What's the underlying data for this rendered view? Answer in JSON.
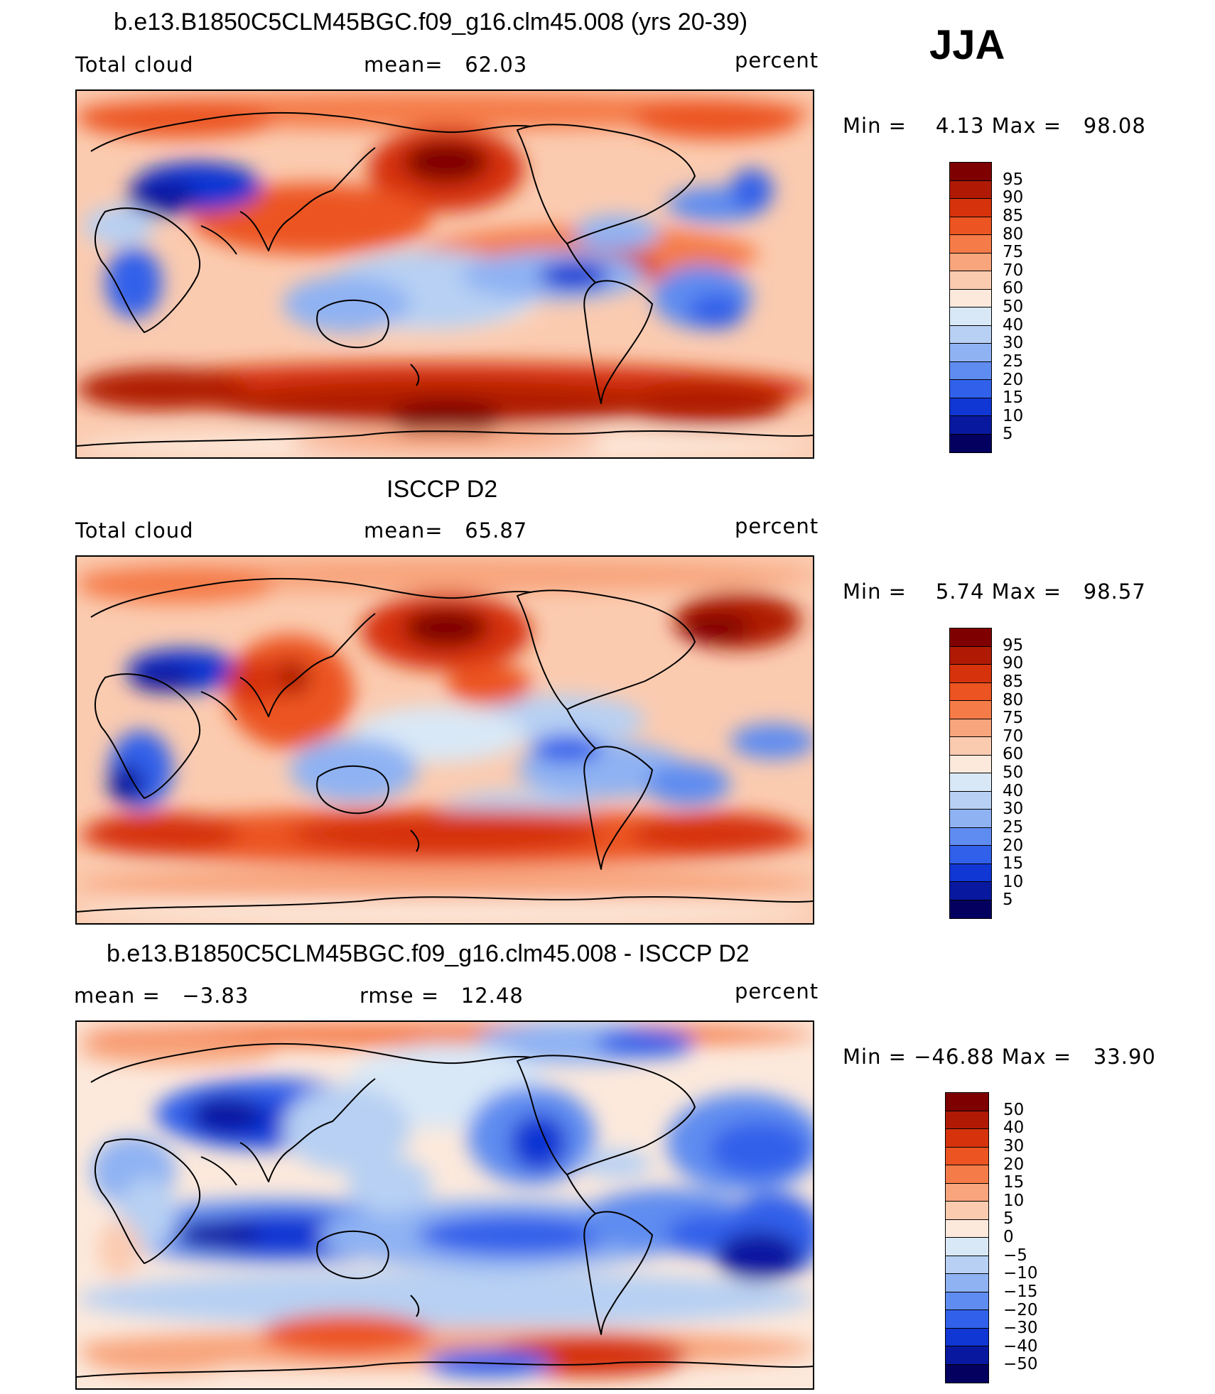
{
  "season": "JJA",
  "panels": [
    {
      "title": "b.e13.B1850C5CLM45BGC.f09_g16.clm45.008 (yrs 20-39)",
      "left_label": "Total cloud",
      "center_label": "mean=   62.03",
      "units": "percent",
      "minmax": "Min =    4.13 Max =   98.08",
      "colorbar_ticks": [
        "95",
        "90",
        "85",
        "80",
        "75",
        "70",
        "60",
        "50",
        "40",
        "30",
        "25",
        "20",
        "15",
        "10",
        "5"
      ]
    },
    {
      "title": "ISCCP D2",
      "left_label": "Total cloud",
      "center_label": "mean=   65.87",
      "units": "percent",
      "minmax": "Min =    5.74 Max =   98.57",
      "colorbar_ticks": [
        "95",
        "90",
        "85",
        "80",
        "75",
        "70",
        "60",
        "50",
        "40",
        "30",
        "25",
        "20",
        "15",
        "10",
        "5"
      ]
    },
    {
      "title": "b.e13.B1850C5CLM45BGC.f09_g16.clm45.008 - ISCCP D2",
      "left_label": "mean =   −3.83",
      "center_label": "rmse =   12.48",
      "units": "percent",
      "minmax": "Min = −46.88 Max =   33.90",
      "colorbar_ticks": [
        "50",
        "40",
        "30",
        "20",
        "15",
        "10",
        "5",
        "0",
        "−5",
        "−10",
        "−15",
        "−20",
        "−30",
        "−40",
        "−50"
      ]
    }
  ],
  "colors": {
    "seq_scale": [
      "#7f0000",
      "#b01a05",
      "#d6330c",
      "#ec5421",
      "#f57b48",
      "#f8a47c",
      "#fbcbb0",
      "#fce9dc",
      "#d9e8f6",
      "#b7d0f3",
      "#8fb2f3",
      "#5f8cf0",
      "#3161ea",
      "#1036d3",
      "#0819a0",
      "#03005f"
    ],
    "diff_scale": [
      "#7f0000",
      "#b01a05",
      "#d6330c",
      "#ec5421",
      "#f57b48",
      "#f8a47c",
      "#fbcbb0",
      "#fce9dc",
      "#d9e8f6",
      "#b7d0f3",
      "#8fb2f3",
      "#5f8cf0",
      "#3161ea",
      "#1036d3",
      "#0819a0",
      "#03005f"
    ],
    "land_outline": "#000000"
  }
}
